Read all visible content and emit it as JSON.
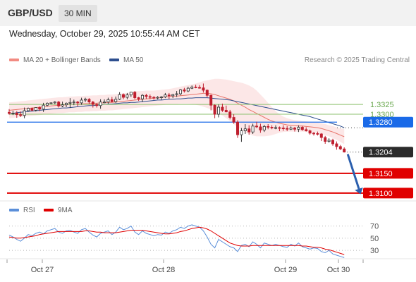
{
  "header": {
    "symbol": "GBP/USD",
    "interval": "30 MIN"
  },
  "datetime": "Wednesday, October 29, 2025 10:55:44 AM CET",
  "legend": {
    "bollinger": {
      "label": "MA 20 + Bollinger Bands",
      "color": "#f28b82"
    },
    "ma50": {
      "label": "MA 50",
      "color": "#2e4f8f"
    }
  },
  "credit": "Research © 2025 Trading Central",
  "rsi_legend": {
    "rsi": {
      "label": "RSI",
      "color": "#5b8fd9"
    },
    "ma": {
      "label": "9MA",
      "color": "#e00000"
    }
  },
  "chart_data": {
    "type": "candlestick",
    "symbol": "GBP/USD",
    "timeframe": "30 MIN",
    "x_ticks": [
      "Oct 27",
      "Oct 28",
      "Oct 29",
      "Oct 30"
    ],
    "ylim": [
      1.308,
      1.342
    ],
    "levels": [
      {
        "value": 1.3325,
        "label": "1.3325",
        "kind": "resistance",
        "color": "#8dc26f"
      },
      {
        "value": 1.33,
        "label": "1.3300",
        "kind": "resistance",
        "color": "#8dc26f"
      },
      {
        "value": 1.328,
        "label": "1.3280",
        "kind": "pivot",
        "color": "#1a6ae8"
      },
      {
        "value": 1.3204,
        "label": "1.3204",
        "kind": "last_price",
        "color": "#333333"
      },
      {
        "value": 1.315,
        "label": "1.3150",
        "kind": "target",
        "color": "#e00000"
      },
      {
        "value": 1.31,
        "label": "1.3100",
        "kind": "target",
        "color": "#e00000"
      }
    ],
    "candles": [
      [
        1.3305,
        1.3313,
        1.3299,
        1.3302
      ],
      [
        1.3302,
        1.3309,
        1.3298,
        1.3303
      ],
      [
        1.3303,
        1.3308,
        1.3291,
        1.3299
      ],
      [
        1.3299,
        1.3307,
        1.3293,
        1.3297
      ],
      [
        1.3297,
        1.3317,
        1.329,
        1.3309
      ],
      [
        1.3309,
        1.3317,
        1.3307,
        1.3315
      ],
      [
        1.3315,
        1.3317,
        1.3308,
        1.331
      ],
      [
        1.331,
        1.3317,
        1.3307,
        1.3317
      ],
      [
        1.3317,
        1.332,
        1.3308,
        1.3313
      ],
      [
        1.3313,
        1.3329,
        1.3306,
        1.3323
      ],
      [
        1.3323,
        1.333,
        1.332,
        1.3328
      ],
      [
        1.3328,
        1.333,
        1.3326,
        1.3329
      ],
      [
        1.3329,
        1.3333,
        1.3326,
        1.3331
      ],
      [
        1.3331,
        1.3334,
        1.3317,
        1.3321
      ],
      [
        1.3321,
        1.3332,
        1.3318,
        1.3324
      ],
      [
        1.3324,
        1.333,
        1.3318,
        1.3328
      ],
      [
        1.3328,
        1.3341,
        1.3316,
        1.333
      ],
      [
        1.333,
        1.3337,
        1.3323,
        1.3331
      ],
      [
        1.3331,
        1.3334,
        1.332,
        1.3329
      ],
      [
        1.3329,
        1.3342,
        1.3324,
        1.3336
      ],
      [
        1.3336,
        1.3342,
        1.3331,
        1.3338
      ],
      [
        1.3338,
        1.3341,
        1.3326,
        1.3331
      ],
      [
        1.3331,
        1.3334,
        1.3317,
        1.3325
      ],
      [
        1.3325,
        1.3328,
        1.3317,
        1.3322
      ],
      [
        1.3322,
        1.3338,
        1.3314,
        1.3331
      ],
      [
        1.3331,
        1.3338,
        1.3328,
        1.3331
      ],
      [
        1.3331,
        1.3342,
        1.3327,
        1.3337
      ],
      [
        1.3337,
        1.3344,
        1.333,
        1.3332
      ],
      [
        1.3332,
        1.3345,
        1.3329,
        1.3338
      ],
      [
        1.3338,
        1.3356,
        1.3336,
        1.335
      ],
      [
        1.335,
        1.3353,
        1.3338,
        1.3343
      ],
      [
        1.3343,
        1.3354,
        1.3338,
        1.3349
      ],
      [
        1.3349,
        1.3356,
        1.3344,
        1.3356
      ],
      [
        1.3356,
        1.3359,
        1.3338,
        1.3342
      ],
      [
        1.3342,
        1.3344,
        1.3334,
        1.3339
      ],
      [
        1.3339,
        1.3351,
        1.3331,
        1.3348
      ],
      [
        1.3348,
        1.3352,
        1.3339,
        1.3345
      ],
      [
        1.3345,
        1.335,
        1.3338,
        1.3343
      ],
      [
        1.3343,
        1.3346,
        1.3337,
        1.3341
      ],
      [
        1.3341,
        1.3346,
        1.3338,
        1.3343
      ],
      [
        1.3343,
        1.3346,
        1.3337,
        1.3344
      ],
      [
        1.3344,
        1.3354,
        1.3341,
        1.3349
      ],
      [
        1.3349,
        1.3354,
        1.3339,
        1.3347
      ],
      [
        1.3347,
        1.3352,
        1.3341,
        1.335
      ],
      [
        1.335,
        1.3359,
        1.3344,
        1.3352
      ],
      [
        1.3352,
        1.3364,
        1.3348,
        1.3362
      ],
      [
        1.3362,
        1.3367,
        1.3355,
        1.3359
      ],
      [
        1.3359,
        1.337,
        1.3356,
        1.3366
      ],
      [
        1.3366,
        1.3373,
        1.3364,
        1.3369
      ],
      [
        1.3369,
        1.3375,
        1.3366,
        1.3368
      ],
      [
        1.3368,
        1.3374,
        1.3365,
        1.3367
      ],
      [
        1.3367,
        1.3378,
        1.3355,
        1.3361
      ],
      [
        1.3361,
        1.3363,
        1.3343,
        1.3348
      ],
      [
        1.3348,
        1.335,
        1.331,
        1.3323
      ],
      [
        1.3323,
        1.3325,
        1.329,
        1.33
      ],
      [
        1.33,
        1.3325,
        1.3292,
        1.3318
      ],
      [
        1.3318,
        1.3327,
        1.3306,
        1.331
      ],
      [
        1.331,
        1.3322,
        1.3305,
        1.3306
      ],
      [
        1.3306,
        1.3311,
        1.3287,
        1.3292
      ],
      [
        1.3292,
        1.33,
        1.3276,
        1.328
      ],
      [
        1.328,
        1.3285,
        1.324,
        1.3248
      ],
      [
        1.3248,
        1.3265,
        1.323,
        1.3258
      ],
      [
        1.3258,
        1.3275,
        1.325,
        1.3263
      ],
      [
        1.3263,
        1.3272,
        1.3248,
        1.3255
      ],
      [
        1.3255,
        1.3276,
        1.325,
        1.327
      ],
      [
        1.327,
        1.3281,
        1.3265,
        1.3268
      ],
      [
        1.3268,
        1.3276,
        1.3253,
        1.326
      ],
      [
        1.326,
        1.3273,
        1.3255,
        1.3269
      ],
      [
        1.3269,
        1.3275,
        1.3262,
        1.3267
      ],
      [
        1.3267,
        1.3272,
        1.3262,
        1.3265
      ],
      [
        1.3265,
        1.3272,
        1.3262,
        1.3266
      ],
      [
        1.3266,
        1.3269,
        1.3257,
        1.3265
      ],
      [
        1.3265,
        1.3272,
        1.3258,
        1.3264
      ],
      [
        1.3264,
        1.327,
        1.3257,
        1.3262
      ],
      [
        1.3262,
        1.3269,
        1.326,
        1.3265
      ],
      [
        1.3265,
        1.3268,
        1.3256,
        1.3262
      ],
      [
        1.3262,
        1.3272,
        1.3255,
        1.3267
      ],
      [
        1.3267,
        1.327,
        1.3258,
        1.3261
      ],
      [
        1.3261,
        1.3267,
        1.3256,
        1.3258
      ],
      [
        1.3258,
        1.3261,
        1.3248,
        1.3252
      ],
      [
        1.3252,
        1.3255,
        1.3246,
        1.3251
      ],
      [
        1.3251,
        1.3256,
        1.3246,
        1.325
      ],
      [
        1.325,
        1.3252,
        1.3232,
        1.3241
      ],
      [
        1.3241,
        1.3245,
        1.3225,
        1.3231
      ],
      [
        1.3231,
        1.3239,
        1.3228,
        1.3234
      ],
      [
        1.3234,
        1.3238,
        1.322,
        1.3225
      ],
      [
        1.3225,
        1.3231,
        1.321,
        1.3218
      ],
      [
        1.3218,
        1.3222,
        1.3209,
        1.3212
      ],
      [
        1.3212,
        1.3216,
        1.3203,
        1.3204
      ]
    ],
    "indicators": {
      "ma20": [
        1.331,
        1.3311,
        1.3312,
        1.3313,
        1.3314,
        1.3315,
        1.3316,
        1.3317,
        1.3318,
        1.3319,
        1.332,
        1.3321,
        1.3322,
        1.3323,
        1.3323,
        1.3324,
        1.3325,
        1.3325,
        1.3326,
        1.3326,
        1.3327,
        1.3327,
        1.3328,
        1.3328,
        1.3329,
        1.3329,
        1.333,
        1.333,
        1.3331,
        1.3332,
        1.3333,
        1.3334,
        1.3335,
        1.3336,
        1.3337,
        1.3338,
        1.3339,
        1.334,
        1.3341,
        1.3342,
        1.3343,
        1.3344,
        1.3345,
        1.3346,
        1.3346,
        1.3347,
        1.3348,
        1.3349,
        1.335,
        1.3351,
        1.3352,
        1.3353,
        1.3353,
        1.3352,
        1.335,
        1.3347,
        1.3344,
        1.3341,
        1.3338,
        1.3334,
        1.3328,
        1.3323,
        1.3318,
        1.3312,
        1.3307,
        1.3302,
        1.3297,
        1.3292,
        1.3287,
        1.3283,
        1.328,
        1.3277,
        1.3275,
        1.3273,
        1.3272,
        1.3271,
        1.327,
        1.327,
        1.3269,
        1.3268,
        1.3267,
        1.3266,
        1.3264,
        1.3261,
        1.3258,
        1.3255,
        1.3251,
        1.3247,
        1.3243
      ],
      "bb_upper": [
        1.333,
        1.3331,
        1.3332,
        1.3333,
        1.3334,
        1.3335,
        1.3336,
        1.3337,
        1.3338,
        1.3339,
        1.334,
        1.3341,
        1.3342,
        1.3343,
        1.3343,
        1.3344,
        1.3345,
        1.3345,
        1.3346,
        1.3346,
        1.3347,
        1.3347,
        1.3348,
        1.3348,
        1.3349,
        1.3349,
        1.335,
        1.335,
        1.3351,
        1.3352,
        1.3353,
        1.3354,
        1.3356,
        1.3358,
        1.3359,
        1.3359,
        1.336,
        1.336,
        1.336,
        1.3361,
        1.3362,
        1.3363,
        1.3364,
        1.3366,
        1.3368,
        1.337,
        1.3372,
        1.3374,
        1.3376,
        1.3378,
        1.3381,
        1.3384,
        1.3386,
        1.3388,
        1.339,
        1.339,
        1.3389,
        1.3388,
        1.3386,
        1.3384,
        1.3382,
        1.338,
        1.3377,
        1.3373,
        1.3368,
        1.336,
        1.335,
        1.334,
        1.3329,
        1.3318,
        1.3308,
        1.33,
        1.3294,
        1.329,
        1.3287,
        1.3285,
        1.3284,
        1.3283,
        1.3282,
        1.3281,
        1.328,
        1.3279,
        1.3277,
        1.3275,
        1.3272,
        1.327,
        1.3267,
        1.3264,
        1.3262
      ],
      "bb_lower": [
        1.329,
        1.3291,
        1.3292,
        1.3293,
        1.3294,
        1.3295,
        1.3296,
        1.3297,
        1.3298,
        1.3299,
        1.33,
        1.3301,
        1.3302,
        1.3303,
        1.3303,
        1.3304,
        1.3305,
        1.3305,
        1.3306,
        1.3306,
        1.3307,
        1.3307,
        1.3308,
        1.3308,
        1.3309,
        1.3309,
        1.331,
        1.331,
        1.3311,
        1.3312,
        1.3313,
        1.3314,
        1.3315,
        1.3316,
        1.3317,
        1.3318,
        1.3319,
        1.332,
        1.3321,
        1.3322,
        1.3323,
        1.3324,
        1.3325,
        1.3326,
        1.3326,
        1.3327,
        1.3327,
        1.3327,
        1.3326,
        1.3324,
        1.3322,
        1.3319,
        1.3316,
        1.3312,
        1.3308,
        1.3302,
        1.3297,
        1.329,
        1.3283,
        1.3275,
        1.3267,
        1.326,
        1.3254,
        1.325,
        1.3246,
        1.3244,
        1.3244,
        1.3244,
        1.3245,
        1.3247,
        1.325,
        1.3253,
        1.3255,
        1.3256,
        1.3256,
        1.3256,
        1.3256,
        1.3256,
        1.3255,
        1.3254,
        1.3253,
        1.3252,
        1.325,
        1.3247,
        1.3244,
        1.324,
        1.3235,
        1.323,
        1.3224
      ],
      "ma50": [
        1.33,
        1.3302,
        1.3304,
        1.3305,
        1.3306,
        1.3307,
        1.3308,
        1.3309,
        1.331,
        1.3311,
        1.3312,
        1.3313,
        1.3314,
        1.3315,
        1.3316,
        1.3316,
        1.3317,
        1.3318,
        1.3319,
        1.332,
        1.3321,
        1.3322,
        1.3322,
        1.3323,
        1.3324,
        1.3325,
        1.3326,
        1.3326,
        1.3327,
        1.3328,
        1.3329,
        1.3329,
        1.333,
        1.333,
        1.3331,
        1.3332,
        1.3333,
        1.3334,
        1.3335,
        1.3336,
        1.3336,
        1.3337,
        1.3338,
        1.3338,
        1.3339,
        1.3339,
        1.334,
        1.3341,
        1.3341,
        1.3342,
        1.3342,
        1.3342,
        1.3342,
        1.3341,
        1.334,
        1.3339,
        1.3338,
        1.3337,
        1.3336,
        1.3334,
        1.3332,
        1.333,
        1.3328,
        1.3326,
        1.3324,
        1.3322,
        1.332,
        1.3318,
        1.3316,
        1.3314,
        1.3312,
        1.331,
        1.3308,
        1.3306,
        1.3304,
        1.3302,
        1.33,
        1.3298,
        1.3296,
        1.3294,
        1.3291,
        1.3288,
        1.3285,
        1.3282,
        1.3279,
        1.3276,
        1.3273,
        1.327,
        1.3266
      ]
    },
    "forecast": {
      "from": 1.3204,
      "to": 1.31
    },
    "rsi": {
      "ylim": [
        15,
        80
      ],
      "ticks": [
        30,
        50,
        70
      ],
      "rsi": [
        55,
        52,
        48,
        45,
        50,
        56,
        54,
        58,
        60,
        57,
        62,
        64,
        66,
        60,
        58,
        62,
        63,
        60,
        58,
        64,
        66,
        60,
        55,
        52,
        58,
        60,
        62,
        56,
        60,
        68,
        64,
        66,
        70,
        60,
        56,
        62,
        58,
        56,
        54,
        56,
        55,
        60,
        58,
        62,
        64,
        68,
        66,
        70,
        72,
        70,
        68,
        62,
        52,
        40,
        34,
        48,
        44,
        40,
        36,
        34,
        28,
        38,
        40,
        36,
        44,
        40,
        34,
        42,
        40,
        38,
        40,
        38,
        36,
        35,
        40,
        37,
        42,
        36,
        34,
        32,
        34,
        33,
        28,
        26,
        30,
        24,
        22,
        20,
        18
      ],
      "ma9": [
        52,
        51,
        50,
        50,
        51,
        52,
        53,
        54,
        56,
        57,
        58,
        59,
        60,
        61,
        61,
        61,
        61,
        61,
        61,
        61,
        62,
        62,
        61,
        60,
        60,
        59,
        59,
        59,
        59,
        60,
        61,
        62,
        63,
        63,
        63,
        63,
        62,
        61,
        60,
        59,
        58,
        57,
        57,
        58,
        59,
        61,
        62,
        64,
        66,
        67,
        68,
        67,
        65,
        62,
        58,
        54,
        50,
        46,
        42,
        40,
        38,
        37,
        37,
        37,
        38,
        38,
        38,
        38,
        38,
        38,
        38,
        38,
        38,
        38,
        38,
        38,
        38,
        37,
        37,
        36,
        35,
        35,
        34,
        32,
        31,
        29,
        27,
        25,
        23
      ]
    }
  }
}
